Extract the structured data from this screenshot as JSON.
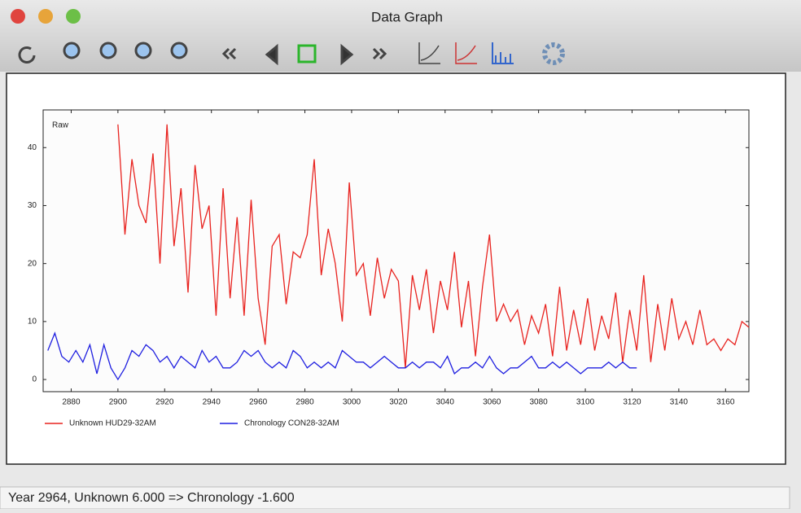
{
  "window": {
    "title": "Data Graph"
  },
  "status": "Year 2964, Unknown 6.000 => Chronology -1.600",
  "chart_data": {
    "type": "line",
    "title": "Raw",
    "x": [
      2870,
      2873,
      2876,
      2879,
      2882,
      2885,
      2888,
      2891,
      2894,
      2897,
      2900,
      2903,
      2906,
      2909,
      2912,
      2915,
      2918,
      2921,
      2924,
      2927,
      2930,
      2933,
      2936,
      2939,
      2942,
      2945,
      2948,
      2951,
      2954,
      2957,
      2960,
      2963,
      2966,
      2969,
      2972,
      2975,
      2978,
      2981,
      2984,
      2987,
      2990,
      2993,
      2996,
      2999,
      3002,
      3005,
      3008,
      3011,
      3014,
      3017,
      3020,
      3023,
      3026,
      3029,
      3032,
      3035,
      3038,
      3041,
      3044,
      3047,
      3050,
      3053,
      3056,
      3059,
      3062,
      3065,
      3068,
      3071,
      3074,
      3077,
      3080,
      3083,
      3086,
      3089,
      3092,
      3095,
      3098,
      3101,
      3104,
      3107,
      3110,
      3113,
      3116,
      3119,
      3122,
      3125,
      3128,
      3131,
      3134,
      3137,
      3140,
      3143,
      3146,
      3149,
      3152,
      3155,
      3158,
      3161,
      3164,
      3167,
      3170
    ],
    "series": [
      {
        "name": "Unknown HUD29-32AM",
        "color": "#e8231f",
        "values": [
          null,
          null,
          null,
          null,
          null,
          null,
          null,
          null,
          null,
          null,
          44,
          25,
          38,
          30,
          27,
          39,
          20,
          44,
          23,
          33,
          15,
          37,
          26,
          30,
          11,
          33,
          14,
          28,
          11,
          31,
          14,
          6,
          23,
          25,
          13,
          22,
          21,
          25,
          38,
          18,
          26,
          20,
          10,
          34,
          18,
          20,
          11,
          21,
          14,
          19,
          17,
          2,
          18,
          12,
          19,
          8,
          17,
          12,
          22,
          9,
          17,
          4,
          16,
          25,
          10,
          13,
          10,
          12,
          6,
          11,
          8,
          13,
          4,
          16,
          5,
          12,
          6,
          14,
          5,
          11,
          7,
          15,
          3,
          12,
          5,
          18,
          3,
          13,
          5,
          14,
          7,
          10,
          6,
          12,
          6,
          7,
          5,
          7,
          6,
          10,
          9
        ]
      },
      {
        "name": "Chronology CON28-32AM",
        "color": "#1f1fe0",
        "values": [
          5,
          8,
          4,
          3,
          5,
          3,
          6,
          1,
          6,
          2,
          0,
          2,
          5,
          4,
          6,
          5,
          3,
          4,
          2,
          4,
          3,
          2,
          5,
          3,
          4,
          2,
          2,
          3,
          5,
          4,
          5,
          3,
          2,
          3,
          2,
          5,
          4,
          2,
          3,
          2,
          3,
          2,
          5,
          4,
          3,
          3,
          2,
          3,
          4,
          3,
          2,
          2,
          3,
          2,
          3,
          3,
          2,
          4,
          1,
          2,
          2,
          3,
          2,
          4,
          2,
          1,
          2,
          2,
          3,
          4,
          2,
          2,
          3,
          2,
          3,
          2,
          1,
          2,
          2,
          2,
          3,
          2,
          3,
          2,
          2,
          null,
          null,
          null,
          null,
          null,
          null,
          null,
          null,
          null,
          null,
          null,
          null,
          null,
          null,
          null,
          null
        ]
      }
    ],
    "xlim": [
      2868,
      3170
    ],
    "ylim": [
      -2.1,
      46.5
    ],
    "xticks": [
      2880,
      2900,
      2920,
      2940,
      2960,
      2980,
      3000,
      3020,
      3040,
      3060,
      3080,
      3100,
      3120,
      3140,
      3160
    ],
    "yticks": [
      0,
      10,
      20,
      30,
      40
    ],
    "legend": "bottom"
  }
}
